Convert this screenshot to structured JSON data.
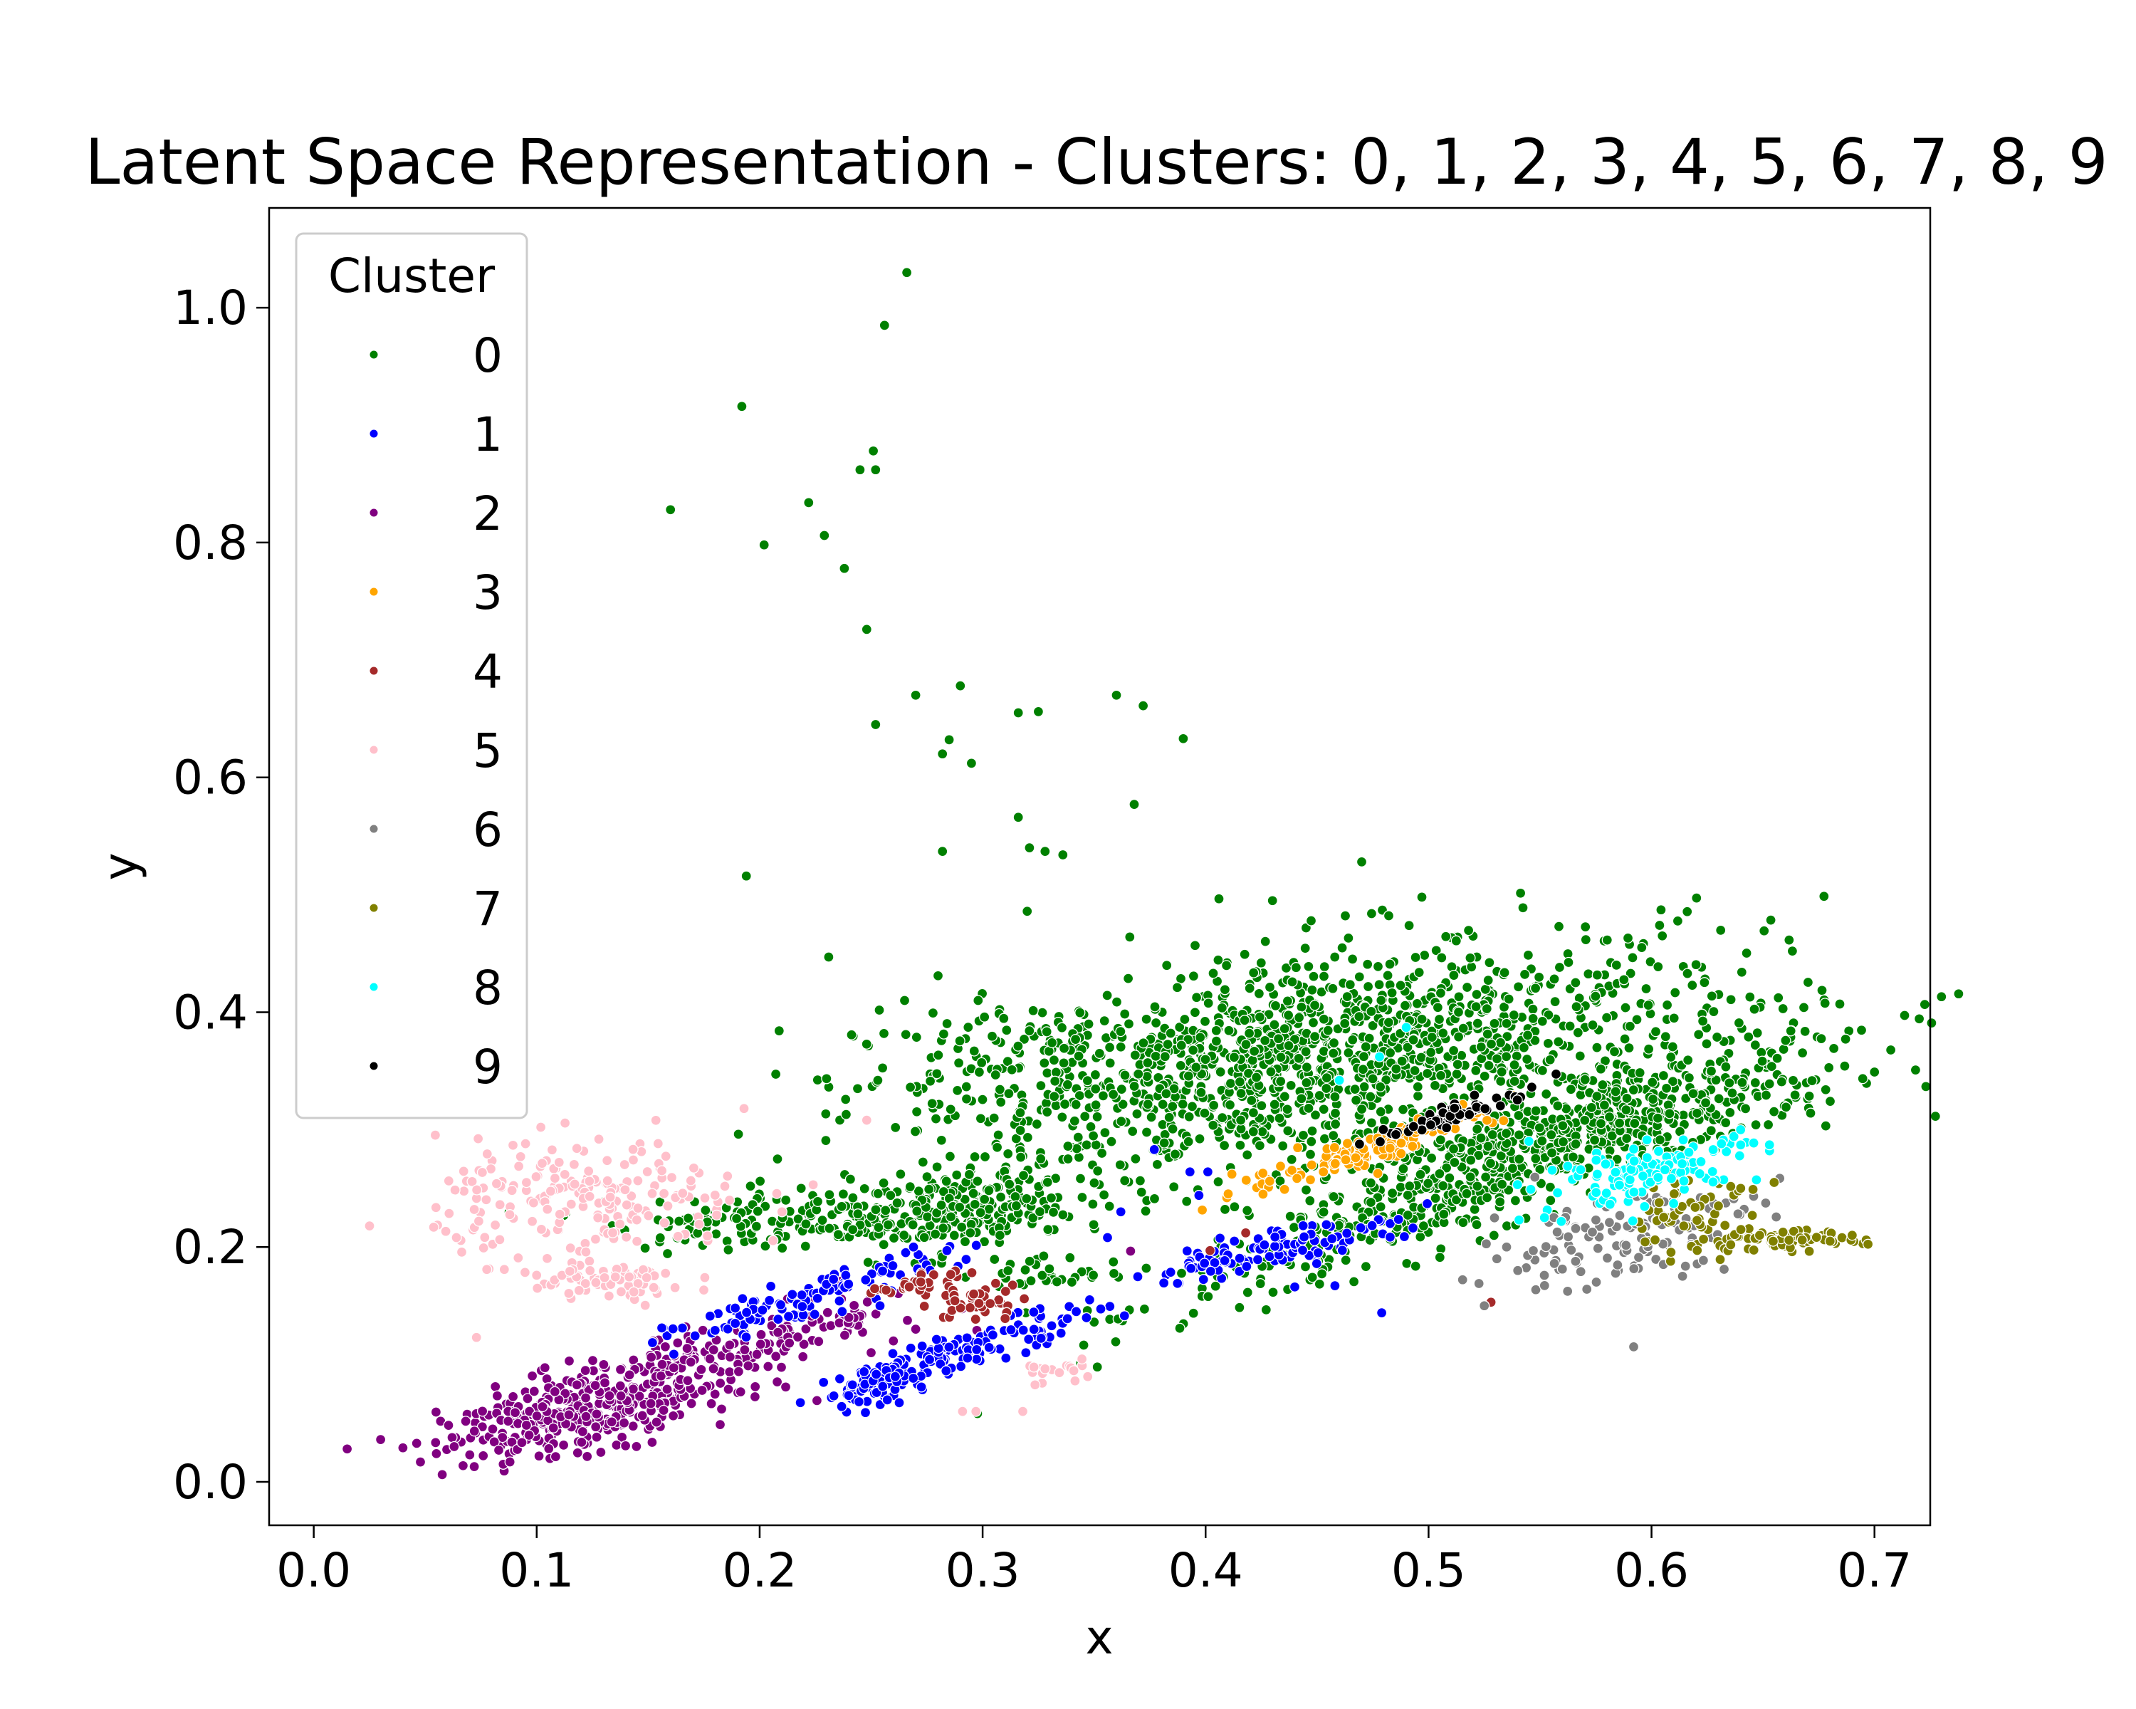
{
  "chart_data": {
    "type": "scatter",
    "title": "Latent Space Representation - Clusters: 0, 1, 2, 3, 4, 5, 6, 7, 8, 9",
    "xlabel": "x",
    "ylabel": "y",
    "xlim": [
      -0.02,
      0.725
    ],
    "ylim": [
      -0.037,
      1.085
    ],
    "xticks": [
      0.0,
      0.1,
      0.2,
      0.3,
      0.4,
      0.5,
      0.6,
      0.7
    ],
    "xtick_labels": [
      "0.0",
      "0.1",
      "0.2",
      "0.3",
      "0.4",
      "0.5",
      "0.6",
      "0.7"
    ],
    "yticks": [
      0.0,
      0.2,
      0.4,
      0.6,
      0.8,
      1.0
    ],
    "ytick_labels": [
      "0.0",
      "0.2",
      "0.4",
      "0.6",
      "0.8",
      "1.0"
    ],
    "grid": false,
    "legend": {
      "title": "Cluster",
      "position": "top-left"
    },
    "series": [
      {
        "name": "0",
        "color": "#008000",
        "points": [
          [
            0.266,
            1.03
          ],
          [
            0.256,
            0.985
          ],
          [
            0.192,
            0.916
          ],
          [
            0.251,
            0.878
          ],
          [
            0.245,
            0.862
          ],
          [
            0.252,
            0.862
          ],
          [
            0.16,
            0.828
          ],
          [
            0.222,
            0.834
          ],
          [
            0.229,
            0.806
          ],
          [
            0.202,
            0.798
          ],
          [
            0.238,
            0.778
          ],
          [
            0.248,
            0.726
          ],
          [
            0.27,
            0.67
          ],
          [
            0.29,
            0.678
          ],
          [
            0.252,
            0.645
          ],
          [
            0.36,
            0.67
          ],
          [
            0.316,
            0.655
          ],
          [
            0.325,
            0.656
          ],
          [
            0.372,
            0.661
          ],
          [
            0.39,
            0.633
          ],
          [
            0.285,
            0.632
          ],
          [
            0.295,
            0.612
          ],
          [
            0.282,
            0.62
          ],
          [
            0.194,
            0.516
          ],
          [
            0.368,
            0.577
          ],
          [
            0.316,
            0.566
          ],
          [
            0.321,
            0.54
          ],
          [
            0.336,
            0.534
          ],
          [
            0.328,
            0.537
          ],
          [
            0.282,
            0.537
          ],
          [
            0.47,
            0.528
          ],
          [
            0.32,
            0.486
          ],
          [
            0.366,
            0.464
          ],
          [
            0.43,
            0.495
          ],
          [
            0.497,
            0.498
          ],
          [
            0.28,
            0.431
          ],
          [
            0.265,
            0.41
          ],
          [
            0.298,
            0.41
          ],
          [
            0.253,
            0.342
          ],
          [
            0.208,
            0.275
          ]
        ],
        "clouds": [
          {
            "center": [
              0.43,
              0.36
            ],
            "spread": [
              0.055,
              0.045
            ],
            "tilt": 0.45,
            "count": 700
          },
          {
            "center": [
              0.52,
              0.37
            ],
            "spread": [
              0.06,
              0.035
            ],
            "tilt": 0.55,
            "count": 450
          },
          {
            "center": [
              0.53,
              0.27
            ],
            "spread": [
              0.07,
              0.025
            ],
            "tilt": 0.75,
            "count": 600
          },
          {
            "center": [
              0.6,
              0.31
            ],
            "spread": [
              0.045,
              0.02
            ],
            "tilt": 0.35,
            "count": 220
          },
          {
            "center": [
              0.33,
              0.35
            ],
            "spread": [
              0.05,
              0.03
            ],
            "tilt": 0.1,
            "count": 260
          },
          {
            "center": [
              0.29,
              0.235
            ],
            "spread": [
              0.025,
              0.02
            ],
            "tilt": 0.3,
            "count": 220
          },
          {
            "center": [
              0.22,
              0.225
            ],
            "spread": [
              0.045,
              0.013
            ],
            "tilt": 0.05,
            "count": 180
          },
          {
            "center": [
              0.33,
              0.176
            ],
            "spread": [
              0.012,
              0.008
            ],
            "tilt": 0.1,
            "count": 30
          }
        ]
      },
      {
        "name": "1",
        "color": "#0000ff",
        "points": [
          [
            0.479,
            0.144
          ],
          [
            0.393,
            0.264
          ],
          [
            0.401,
            0.264
          ],
          [
            0.377,
            0.283
          ],
          [
            0.362,
            0.23
          ],
          [
            0.356,
            0.208
          ],
          [
            0.397,
            0.244
          ],
          [
            0.458,
            0.167
          ],
          [
            0.44,
            0.166
          ],
          [
            0.284,
            0.197
          ],
          [
            0.269,
            0.2
          ],
          [
            0.348,
            0.155
          ],
          [
            0.342,
            0.145
          ],
          [
            0.254,
            0.15
          ]
        ],
        "clouds": [
          {
            "center": [
              0.22,
              0.155
            ],
            "spread": [
              0.03,
              0.008
            ],
            "tilt": 0.55,
            "count": 110
          },
          {
            "center": [
              0.295,
              0.115
            ],
            "spread": [
              0.03,
              0.008
            ],
            "tilt": 0.55,
            "count": 110
          },
          {
            "center": [
              0.255,
              0.083
            ],
            "spread": [
              0.012,
              0.008
            ],
            "tilt": 0.3,
            "count": 70
          },
          {
            "center": [
              0.43,
              0.198
            ],
            "spread": [
              0.028,
              0.008
            ],
            "tilt": 0.4,
            "count": 110
          }
        ]
      },
      {
        "name": "2",
        "color": "#800080",
        "points": [
          [
            0.015,
            0.028
          ],
          [
            0.03,
            0.036
          ],
          [
            0.04,
            0.029
          ],
          [
            0.055,
            0.024
          ],
          [
            0.063,
            0.03
          ],
          [
            0.07,
            0.023
          ],
          [
            0.072,
            0.013
          ],
          [
            0.085,
            0.015
          ],
          [
            0.088,
            0.017
          ],
          [
            0.083,
            0.027
          ],
          [
            0.24,
            0.14
          ],
          [
            0.26,
            0.12
          ],
          [
            0.27,
            0.13
          ],
          [
            0.25,
            0.11
          ]
        ],
        "clouds": [
          {
            "center": [
              0.13,
              0.065
            ],
            "spread": [
              0.03,
              0.017
            ],
            "tilt": 0.35,
            "count": 280
          },
          {
            "center": [
              0.195,
              0.115
            ],
            "spread": [
              0.04,
              0.014
            ],
            "tilt": 0.55,
            "count": 150
          },
          {
            "center": [
              0.1,
              0.055
            ],
            "spread": [
              0.02,
              0.015
            ],
            "tilt": 0.3,
            "count": 90
          }
        ]
      },
      {
        "name": "3",
        "color": "#ffa500",
        "points": [],
        "clouds": [
          {
            "center": [
              0.475,
              0.285
            ],
            "spread": [
              0.03,
              0.007
            ],
            "tilt": 0.6,
            "count": 130
          }
        ]
      },
      {
        "name": "4",
        "color": "#a52a2a",
        "points": [
          [
            0.528,
            0.153
          ],
          [
            0.402,
            0.197
          ],
          [
            0.418,
            0.212
          ],
          [
            0.296,
            0.16
          ]
        ],
        "clouds": [
          {
            "center": [
              0.272,
              0.17
            ],
            "spread": [
              0.012,
              0.004
            ],
            "tilt": 0.4,
            "count": 35
          },
          {
            "center": [
              0.298,
              0.152
            ],
            "spread": [
              0.01,
              0.008
            ],
            "tilt": 0.2,
            "count": 40
          }
        ]
      },
      {
        "name": "5",
        "color": "#ffc0cb",
        "points": [
          [
            0.118,
            0.284
          ],
          [
            0.095,
            0.288
          ],
          [
            0.193,
            0.318
          ],
          [
            0.248,
            0.308
          ],
          [
            0.073,
            0.123
          ],
          [
            0.064,
            0.208
          ],
          [
            0.074,
            0.222
          ],
          [
            0.072,
            0.232
          ],
          [
            0.082,
            0.254
          ],
          [
            0.291,
            0.06
          ],
          [
            0.297,
            0.06
          ],
          [
            0.318,
            0.06
          ],
          [
            0.21,
            0.23
          ],
          [
            0.224,
            0.253
          ]
        ],
        "clouds": [
          {
            "center": [
              0.125,
              0.24
            ],
            "spread": [
              0.035,
              0.025
            ],
            "tilt": 0.0,
            "count": 200
          },
          {
            "center": [
              0.13,
              0.17
            ],
            "spread": [
              0.02,
              0.01
            ],
            "tilt": 0.0,
            "count": 70
          },
          {
            "center": [
              0.335,
              0.095
            ],
            "spread": [
              0.008,
              0.006
            ],
            "tilt": 0.3,
            "count": 20
          }
        ]
      },
      {
        "name": "6",
        "color": "#808080",
        "points": [
          [
            0.592,
            0.115
          ],
          [
            0.525,
            0.15
          ],
          [
            0.535,
            0.2
          ],
          [
            0.54,
            0.18
          ]
        ],
        "clouds": [
          {
            "center": [
              0.585,
              0.21
            ],
            "spread": [
              0.03,
              0.02
            ],
            "tilt": 0.3,
            "count": 130
          }
        ]
      },
      {
        "name": "7",
        "color": "#808000",
        "points": [
          [
            0.69,
            0.21
          ],
          [
            0.64,
            0.25
          ],
          [
            0.655,
            0.255
          ],
          [
            0.63,
            0.235
          ]
        ],
        "clouds": [
          {
            "center": [
              0.655,
              0.205
            ],
            "spread": [
              0.02,
              0.004
            ],
            "tilt": 0.05,
            "count": 80
          },
          {
            "center": [
              0.615,
              0.225
            ],
            "spread": [
              0.015,
              0.015
            ],
            "tilt": 0.2,
            "count": 50
          }
        ]
      },
      {
        "name": "8",
        "color": "#00ffff",
        "points": [
          [
            0.49,
            0.387
          ],
          [
            0.478,
            0.362
          ],
          [
            0.46,
            0.342
          ],
          [
            0.552,
            0.225
          ],
          [
            0.64,
            0.287
          ],
          [
            0.545,
            0.29
          ]
        ],
        "clouds": [
          {
            "center": [
              0.6,
              0.265
            ],
            "spread": [
              0.025,
              0.012
            ],
            "tilt": 0.35,
            "count": 120
          }
        ]
      },
      {
        "name": "9",
        "color": "#000000",
        "points": [],
        "clouds": [
          {
            "center": [
              0.515,
              0.315
            ],
            "spread": [
              0.017,
              0.004
            ],
            "tilt": 0.6,
            "count": 60
          }
        ]
      }
    ]
  }
}
